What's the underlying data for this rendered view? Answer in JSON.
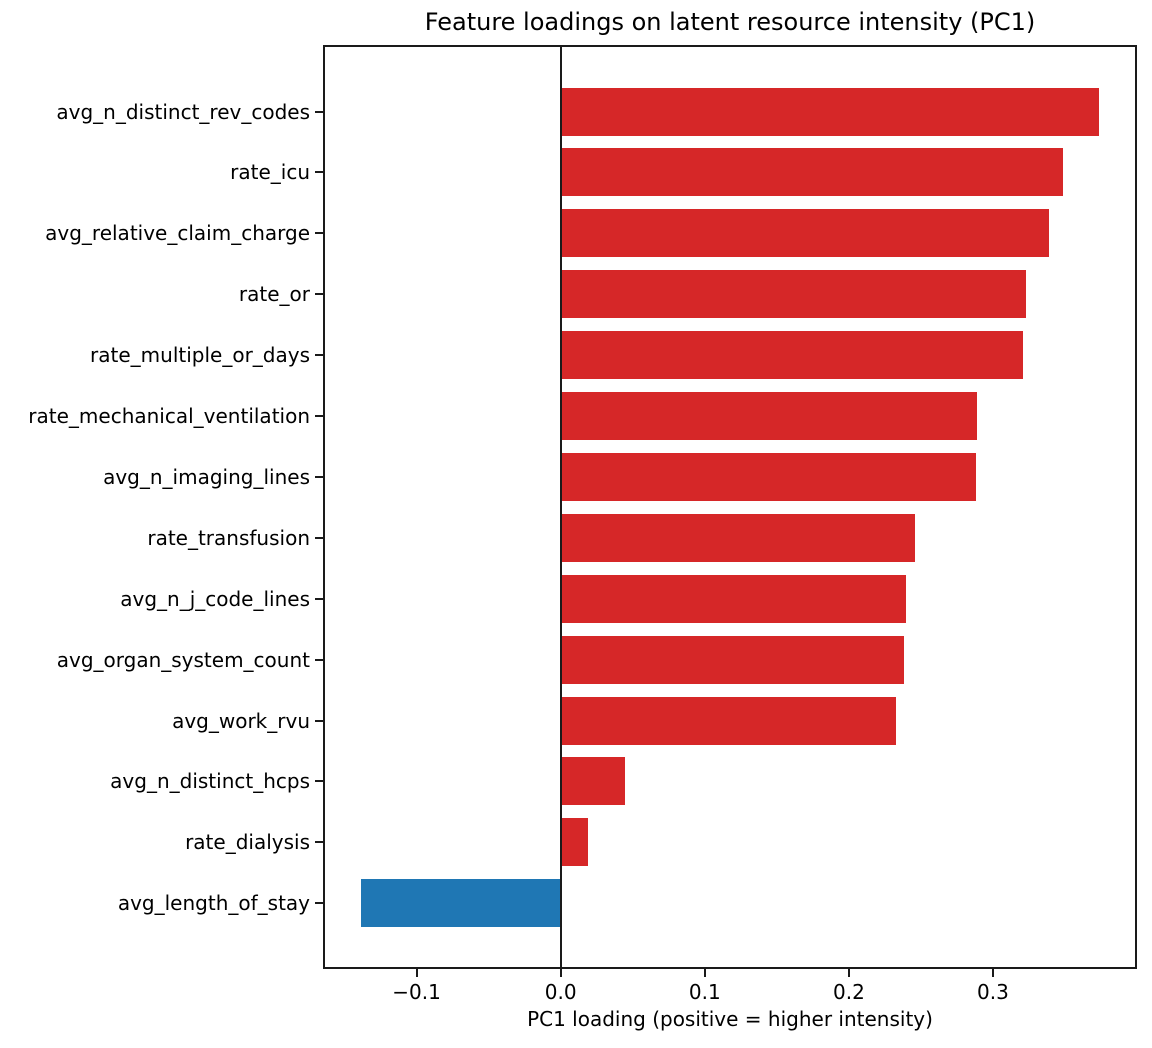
{
  "chart_data": {
    "type": "bar",
    "orientation": "horizontal",
    "title": "Feature loadings on latent resource intensity (PC1)",
    "xlabel": "PC1 loading (positive = higher intensity)",
    "xlim": [
      -0.165,
      0.4
    ],
    "grid": false,
    "legend": false,
    "zero_line": true,
    "colors": {
      "positive": "#d62728",
      "negative": "#1f77b4"
    },
    "x_ticks": [
      {
        "value": -0.1,
        "label": "−0.1"
      },
      {
        "value": 0.0,
        "label": "0.0"
      },
      {
        "value": 0.1,
        "label": "0.1"
      },
      {
        "value": 0.2,
        "label": "0.2"
      },
      {
        "value": 0.3,
        "label": "0.3"
      }
    ],
    "bars": [
      {
        "label": "avg_n_distinct_rev_codes",
        "value": 0.374,
        "color": "#d62728"
      },
      {
        "label": "rate_icu",
        "value": 0.349,
        "color": "#d62728"
      },
      {
        "label": "avg_relative_claim_charge",
        "value": 0.339,
        "color": "#d62728"
      },
      {
        "label": "rate_or",
        "value": 0.323,
        "color": "#d62728"
      },
      {
        "label": "rate_multiple_or_days",
        "value": 0.321,
        "color": "#d62728"
      },
      {
        "label": "rate_mechanical_ventilation",
        "value": 0.289,
        "color": "#d62728"
      },
      {
        "label": "avg_n_imaging_lines",
        "value": 0.288,
        "color": "#d62728"
      },
      {
        "label": "rate_transfusion",
        "value": 0.246,
        "color": "#d62728"
      },
      {
        "label": "avg_n_j_code_lines",
        "value": 0.24,
        "color": "#d62728"
      },
      {
        "label": "avg_organ_system_count",
        "value": 0.238,
        "color": "#d62728"
      },
      {
        "label": "avg_work_rvu",
        "value": 0.233,
        "color": "#d62728"
      },
      {
        "label": "avg_n_distinct_hcps",
        "value": 0.045,
        "color": "#d62728"
      },
      {
        "label": "rate_dialysis",
        "value": 0.019,
        "color": "#d62728"
      },
      {
        "label": "avg_length_of_stay",
        "value": -0.139,
        "color": "#1f77b4"
      }
    ]
  }
}
